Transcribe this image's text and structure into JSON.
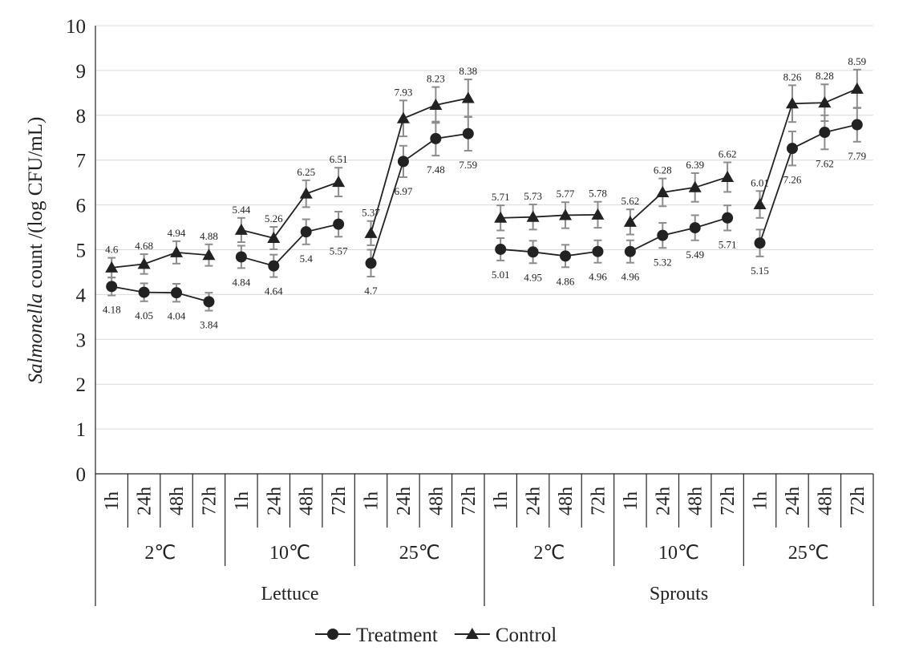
{
  "chart_data": {
    "type": "line",
    "ylabel_italic": "Salmonella",
    "ylabel_rest": " count /(log CFU/mL)",
    "ylim": [
      0,
      10
    ],
    "yticks": [
      "0",
      "1",
      "2",
      "3",
      "4",
      "5",
      "6",
      "7",
      "8",
      "9",
      "10"
    ],
    "grid": true,
    "legend_position": "bottom-center",
    "categories": [
      "1h",
      "24h",
      "48h",
      "72h",
      "1h",
      "24h",
      "48h",
      "72h",
      "1h",
      "24h",
      "48h",
      "72h",
      "1h",
      "24h",
      "48h",
      "72h",
      "1h",
      "24h",
      "48h",
      "72h",
      "1h",
      "24h",
      "48h",
      "72h"
    ],
    "temperature_groups": [
      "2℃",
      "10℃",
      "25℃",
      "2℃",
      "10℃",
      "25℃"
    ],
    "product_groups": [
      "Lettuce",
      "Sprouts"
    ],
    "series": [
      {
        "name": "Treatment",
        "marker": "circle",
        "values": [
          4.18,
          4.05,
          4.04,
          3.84,
          4.84,
          4.64,
          5.4,
          5.57,
          4.7,
          6.97,
          7.48,
          7.59,
          5.01,
          4.95,
          4.86,
          4.96,
          4.96,
          5.32,
          5.49,
          5.71,
          5.15,
          7.26,
          7.62,
          7.79
        ],
        "labels": [
          "4.18",
          "4.05",
          "4.04",
          "3.84",
          "4.84",
          "4.64",
          "5.4",
          "5.57",
          "4.7",
          "6.97",
          "7.48",
          "7.59",
          "5.01",
          "4.95",
          "4.86",
          "4.96",
          "4.96",
          "5.32",
          "5.49",
          "5.71",
          "5.15",
          "7.26",
          "7.62",
          "7.79"
        ],
        "errors": [
          0.2,
          0.2,
          0.2,
          0.2,
          0.25,
          0.25,
          0.28,
          0.28,
          0.3,
          0.35,
          0.38,
          0.38,
          0.25,
          0.25,
          0.25,
          0.25,
          0.25,
          0.28,
          0.28,
          0.28,
          0.3,
          0.38,
          0.38,
          0.38
        ]
      },
      {
        "name": "Control",
        "marker": "triangle",
        "values": [
          4.6,
          4.68,
          4.94,
          4.88,
          5.44,
          5.26,
          6.25,
          6.51,
          5.37,
          7.93,
          8.23,
          8.38,
          5.71,
          5.73,
          5.77,
          5.78,
          5.62,
          6.28,
          6.39,
          6.62,
          6.01,
          8.26,
          8.28,
          8.59
        ],
        "labels": [
          "4.6",
          "4.68",
          "4.94",
          "4.88",
          "5.44",
          "5.26",
          "6.25",
          "6.51",
          "5.37",
          "7.93",
          "8.23",
          "8.38",
          "5.71",
          "5.73",
          "5.77",
          "5.78",
          "5.62",
          "6.28",
          "6.39",
          "6.62",
          "6.01",
          "8.26",
          "8.28",
          "8.59"
        ],
        "errors": [
          0.22,
          0.22,
          0.25,
          0.24,
          0.27,
          0.25,
          0.3,
          0.32,
          0.27,
          0.4,
          0.4,
          0.42,
          0.28,
          0.28,
          0.29,
          0.29,
          0.28,
          0.31,
          0.32,
          0.33,
          0.3,
          0.41,
          0.41,
          0.43
        ]
      }
    ],
    "colors": {
      "line": "#222222",
      "error_bar": "#8c8c8c",
      "grid": "#d9d9d9",
      "axis": "#222222"
    }
  }
}
